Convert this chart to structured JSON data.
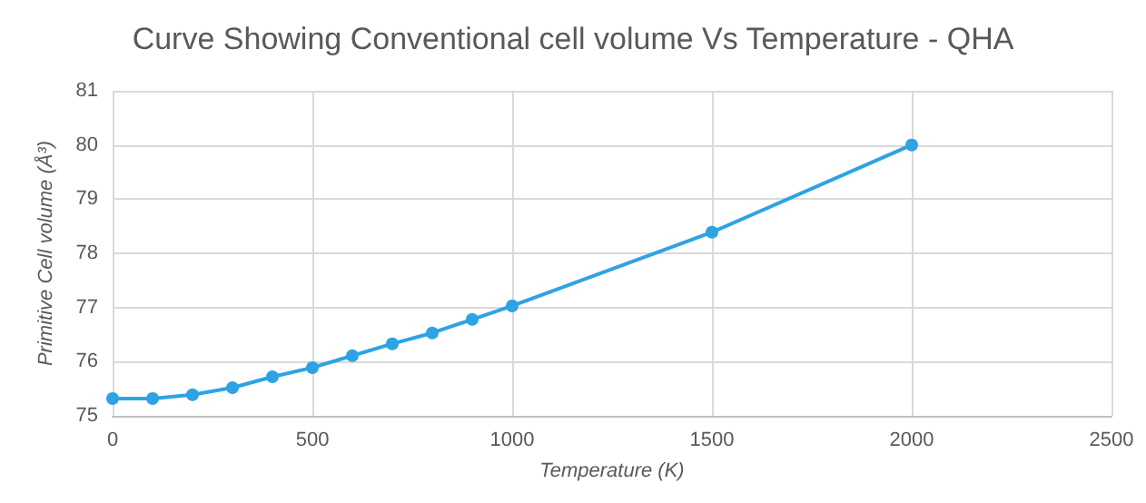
{
  "chart_data": {
    "type": "line",
    "title": "Curve Showing Conventional cell volume Vs Temperature - QHA",
    "xlabel": "Temperature (K)",
    "ylabel": "Primitive Cell volume (Å³)",
    "x": [
      0,
      100,
      200,
      300,
      400,
      500,
      600,
      700,
      800,
      900,
      1000,
      1500,
      2000
    ],
    "series": [
      {
        "color": "#2ea3e3",
        "values": [
          75.32,
          75.32,
          75.39,
          75.52,
          75.72,
          75.89,
          76.11,
          76.33,
          76.53,
          76.78,
          77.03,
          78.39,
          80.0
        ]
      }
    ],
    "xlim": [
      0,
      2500
    ],
    "xticks": [
      0,
      500,
      1000,
      1500,
      2000,
      2500
    ],
    "ylim": [
      75,
      81
    ],
    "yticks": [
      75,
      76,
      77,
      78,
      79,
      80,
      81
    ],
    "grid": true,
    "marker": "circle",
    "line_style": "solid"
  }
}
